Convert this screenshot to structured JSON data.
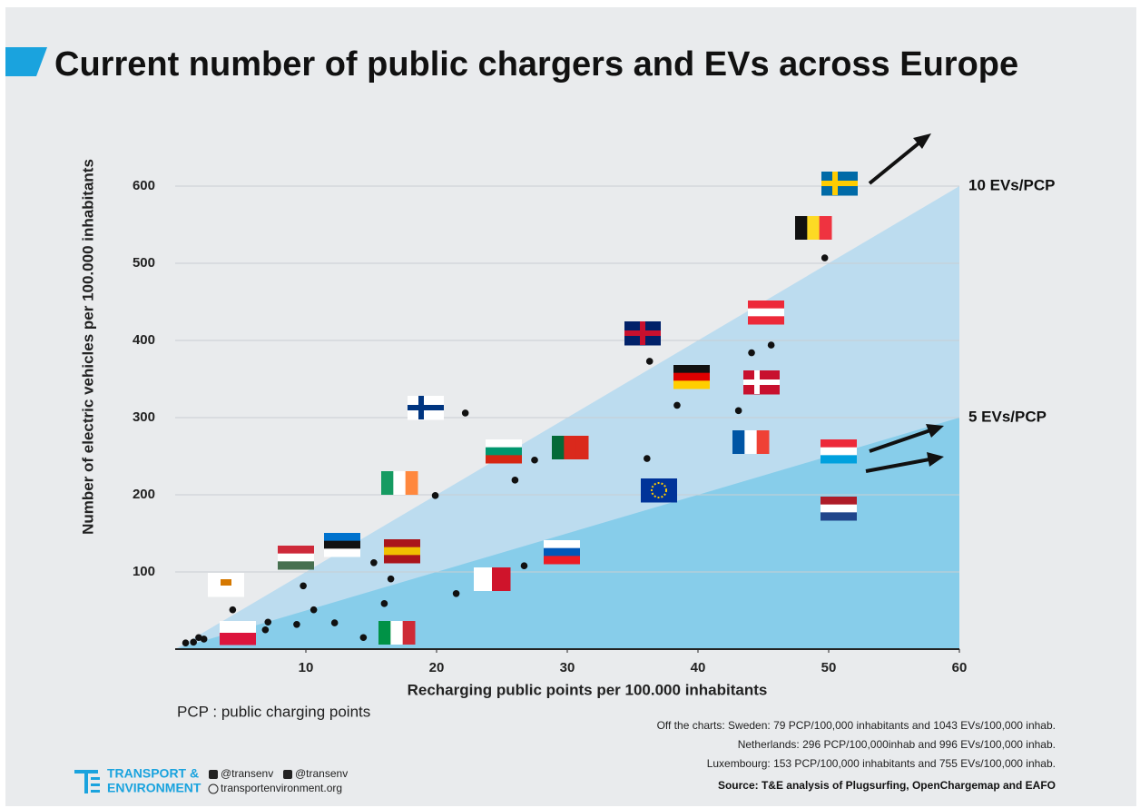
{
  "chart_data": {
    "type": "scatter",
    "title": "Current number of public chargers and EVs across Europe",
    "x_label": "Recharging public points per 100.000 inhabitants",
    "y_label": "Number of electric vehicles per 100.000 inhabitants",
    "x": [
      0.8,
      1.4,
      1.8,
      2.2,
      4.4,
      6.9,
      7.1,
      9.3,
      9.8,
      10.6,
      12.2,
      14.4,
      15.2,
      16.0,
      16.5,
      19.9,
      22.2,
      21.5,
      26.0,
      26.7,
      27.5,
      36.1,
      36.3,
      38.4,
      43.1,
      44.1,
      45.6,
      49.7
    ],
    "values": [
      8,
      9,
      15,
      13,
      51,
      25,
      35,
      32,
      82,
      51,
      34,
      15,
      112,
      59,
      91,
      199,
      306,
      72,
      219,
      108,
      245,
      247,
      373,
      316,
      309,
      384,
      394,
      507
    ],
    "color": "#111111",
    "xlim": [
      0,
      60
    ],
    "xticks": [
      10,
      20,
      30,
      40,
      50,
      60
    ],
    "ylim": [
      0,
      600
    ],
    "yticks": [
      100,
      200,
      300,
      400,
      500,
      600
    ],
    "grid": true,
    "reference_lines": [
      {
        "label": "10 EVs/PCP",
        "ratio": 10,
        "color": "#bcdcef"
      },
      {
        "label": "5 EVs/PCP",
        "ratio": 5,
        "color": "#87cdea"
      }
    ],
    "footnote": "PCP : public charging points",
    "notes": [
      "Off the charts: Sweden: 79 PCP/100,000 inhabitants and 1043 EVs/100,000 inhab.",
      "Netherlands: 296 PCP/100,000inhab and 996 EVs/100,000 inhab.",
      "Luxembourg: 153 PCP/100,000 inhabitants and 755 EVs/100,000 inhab."
    ],
    "source": "Source: T&E analysis of Plugsurfing, OpenChargemap and EAFO",
    "logo": [
      "TRANSPORT &",
      "ENVIRONMENT"
    ],
    "social": [
      "@transenv",
      "@transenv",
      "transportenvironment.org"
    ]
  }
}
